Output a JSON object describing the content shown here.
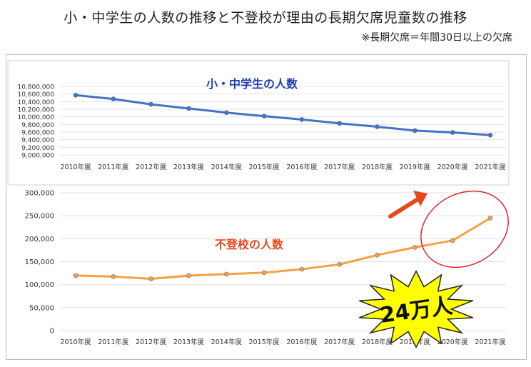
{
  "title": "小・中学生の人数の推移と不登校が理由の長期欠席児童数の推移",
  "note": "※長期欠席＝年間30日以上の欠席",
  "callout": "24万人",
  "colors": {
    "top_line": "#4472c4",
    "bottom_line": "#f5a142",
    "arrow": "#e8471c",
    "circle": "#e0252b",
    "burst": "#ffff00",
    "top_title": "#1f3fb8",
    "bottom_title": "#e8471c"
  },
  "chart_data": [
    {
      "type": "line",
      "title": "小・中学生の人数",
      "categories": [
        "2010年度",
        "2011年度",
        "2012年度",
        "2013年度",
        "2014年度",
        "2015年度",
        "2016年度",
        "2017年度",
        "2018年度",
        "2019年度",
        "2020年度",
        "2021年度"
      ],
      "values": [
        10570000,
        10470000,
        10330000,
        10220000,
        10110000,
        10020000,
        9930000,
        9830000,
        9740000,
        9640000,
        9590000,
        9520000
      ],
      "yticks": [
        9000000,
        9200000,
        9400000,
        9600000,
        9800000,
        10000000,
        10200000,
        10400000,
        10600000,
        10800000
      ],
      "ytick_labels": [
        "9,000,000",
        "9,200,000",
        "9,400,000",
        "9,600,000",
        "9,800,000",
        "10,000,000",
        "10,200,000",
        "10,400,000",
        "10,600,000",
        "10,800,000"
      ],
      "ylim": [
        9000000,
        10800000
      ],
      "grid": true
    },
    {
      "type": "line",
      "title": "不登校の人数",
      "categories": [
        "2010年度",
        "2011年度",
        "2012年度",
        "2013年度",
        "2014年度",
        "2015年度",
        "2016年度",
        "2017年度",
        "2018年度",
        "2019年度",
        "2020年度",
        "2021年度"
      ],
      "values": [
        119891,
        117458,
        112689,
        119617,
        122897,
        125991,
        133683,
        144031,
        164528,
        181272,
        196127,
        244940
      ],
      "yticks": [
        0,
        50000,
        100000,
        150000,
        200000,
        250000,
        300000
      ],
      "ytick_labels": [
        "0",
        "50,000",
        "100,000",
        "150,000",
        "200,000",
        "250,000",
        "300,000"
      ],
      "ylim": [
        0,
        300000
      ],
      "grid": true
    }
  ]
}
